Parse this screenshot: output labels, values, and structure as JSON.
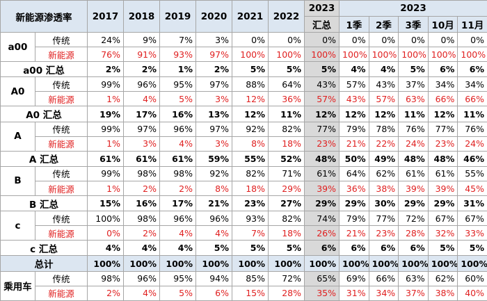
{
  "header": {
    "title": "新能源渗透率",
    "years": [
      "2017",
      "2018",
      "2019",
      "2020",
      "2021",
      "2022"
    ],
    "summary_col": {
      "year": "2023",
      "label": "汇总"
    },
    "group": {
      "year": "2023",
      "periods": [
        "1季",
        "2季",
        "3季",
        "10月",
        "11月"
      ]
    }
  },
  "groups": [
    {
      "segment": "a00",
      "rows": [
        {
          "type": "传统",
          "values": [
            "24%",
            "9%",
            "7%",
            "3%",
            "0%",
            "0%",
            "0%",
            "0%",
            "0%",
            "0%",
            "0%",
            "0%"
          ]
        },
        {
          "type": "新能源",
          "values": [
            "76%",
            "91%",
            "93%",
            "97%",
            "100%",
            "100%",
            "100%",
            "100%",
            "100%",
            "100%",
            "100%",
            "100%"
          ]
        }
      ],
      "total": {
        "label": "a00 汇总",
        "values": [
          "2%",
          "2%",
          "1%",
          "2%",
          "5%",
          "5%",
          "5%",
          "4%",
          "4%",
          "5%",
          "6%",
          "6%"
        ]
      }
    },
    {
      "segment": "A0",
      "rows": [
        {
          "type": "传统",
          "values": [
            "99%",
            "96%",
            "95%",
            "97%",
            "88%",
            "64%",
            "43%",
            "57%",
            "43%",
            "37%",
            "34%",
            "34%"
          ]
        },
        {
          "type": "新能源",
          "values": [
            "1%",
            "4%",
            "5%",
            "3%",
            "12%",
            "36%",
            "57%",
            "43%",
            "57%",
            "63%",
            "66%",
            "66%"
          ]
        }
      ],
      "total": {
        "label": "A0 汇总",
        "values": [
          "19%",
          "17%",
          "16%",
          "13%",
          "12%",
          "11%",
          "12%",
          "12%",
          "12%",
          "11%",
          "12%",
          "11%"
        ]
      }
    },
    {
      "segment": "A",
      "rows": [
        {
          "type": "传统",
          "values": [
            "99%",
            "97%",
            "96%",
            "97%",
            "92%",
            "82%",
            "77%",
            "79%",
            "78%",
            "76%",
            "77%",
            "76%"
          ]
        },
        {
          "type": "新能源",
          "values": [
            "1%",
            "3%",
            "4%",
            "3%",
            "8%",
            "18%",
            "23%",
            "21%",
            "22%",
            "24%",
            "23%",
            "24%"
          ]
        }
      ],
      "total": {
        "label": "A 汇总",
        "values": [
          "61%",
          "61%",
          "61%",
          "59%",
          "55%",
          "52%",
          "48%",
          "50%",
          "49%",
          "48%",
          "48%",
          "46%"
        ]
      }
    },
    {
      "segment": "B",
      "rows": [
        {
          "type": "传统",
          "values": [
            "99%",
            "98%",
            "98%",
            "92%",
            "82%",
            "71%",
            "61%",
            "64%",
            "62%",
            "61%",
            "61%",
            "55%"
          ]
        },
        {
          "type": "新能源",
          "values": [
            "1%",
            "2%",
            "2%",
            "8%",
            "18%",
            "29%",
            "39%",
            "36%",
            "38%",
            "39%",
            "39%",
            "45%"
          ]
        }
      ],
      "total": {
        "label": "B 汇总",
        "values": [
          "15%",
          "16%",
          "17%",
          "21%",
          "23%",
          "27%",
          "29%",
          "29%",
          "30%",
          "29%",
          "29%",
          "31%"
        ]
      }
    },
    {
      "segment": "c",
      "rows": [
        {
          "type": "传统",
          "values": [
            "100%",
            "98%",
            "96%",
            "96%",
            "93%",
            "82%",
            "74%",
            "79%",
            "77%",
            "72%",
            "67%",
            "67%"
          ]
        },
        {
          "type": "新能源",
          "values": [
            "0%",
            "2%",
            "4%",
            "4%",
            "7%",
            "18%",
            "26%",
            "21%",
            "23%",
            "28%",
            "32%",
            "33%"
          ]
        }
      ],
      "total": {
        "label": "c 汇总",
        "values": [
          "4%",
          "4%",
          "4%",
          "5%",
          "5%",
          "5%",
          "6%",
          "6%",
          "6%",
          "6%",
          "5%",
          "5%"
        ]
      }
    }
  ],
  "grand_total": {
    "label": "总计",
    "values": [
      "100%",
      "100%",
      "100%",
      "100%",
      "100%",
      "100%",
      "100%",
      "100%",
      "100%",
      "100%",
      "100%",
      "100%"
    ]
  },
  "passenger": {
    "segment": "乘用车",
    "rows": [
      {
        "type": "传统",
        "values": [
          "98%",
          "96%",
          "95%",
          "94%",
          "85%",
          "72%",
          "65%",
          "69%",
          "66%",
          "63%",
          "62%",
          "60%"
        ]
      },
      {
        "type": "新能源",
        "values": [
          "2%",
          "4%",
          "5%",
          "6%",
          "15%",
          "28%",
          "35%",
          "31%",
          "34%",
          "37%",
          "38%",
          "40%"
        ]
      }
    ]
  }
}
